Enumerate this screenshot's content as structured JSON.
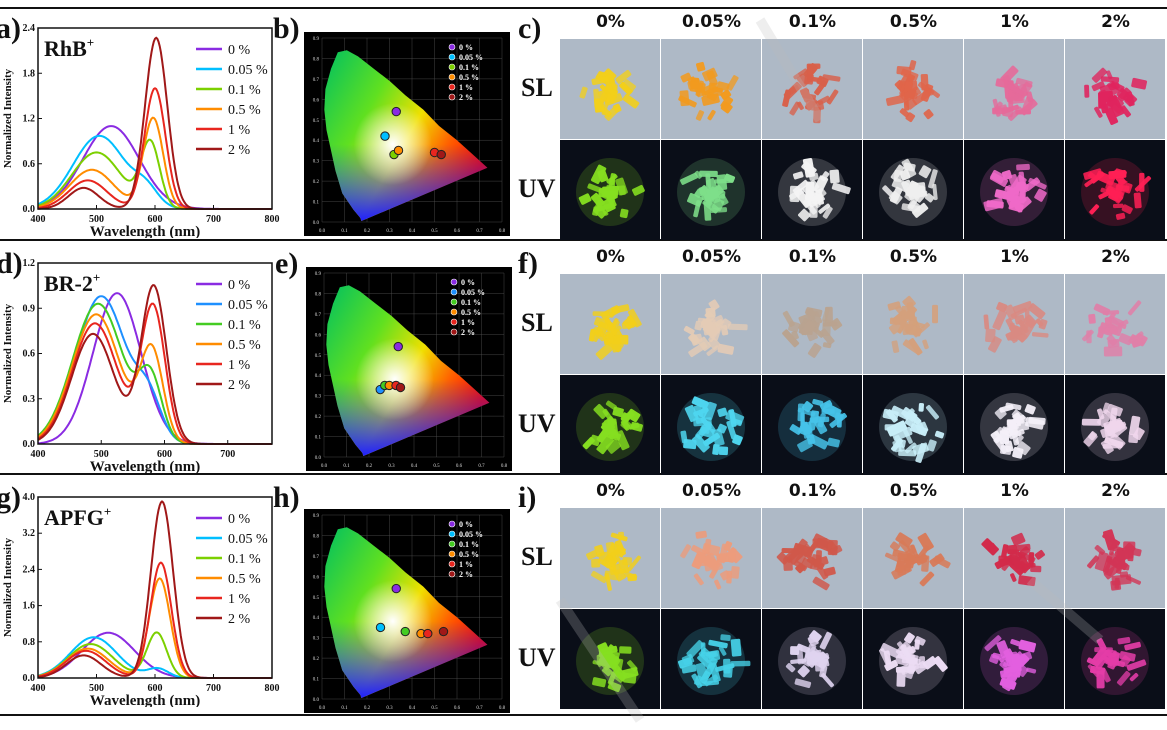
{
  "colors": {
    "s0": "#8a2be2",
    "s005": "#00bfff",
    "s01": "#7cd000",
    "s05": "#ff8c00",
    "s1": "#e8261f",
    "s2": "#a01818",
    "slBg": "#aeb9c6",
    "uvBg": "#0a0e18"
  },
  "legend_labels": [
    "0 %",
    "0.05 %",
    "0.1 %",
    "0.5 %",
    "1 %",
    "2 %"
  ],
  "cie_legend_labels": [
    "0 %",
    "0.05 %",
    "0.1 %",
    "0.5 %",
    "1 %",
    "2 %"
  ],
  "photo_headers": [
    "0%",
    "0.05%",
    "0.1%",
    "0.5%",
    "1%",
    "2%"
  ],
  "row_labels": {
    "sl": "SL",
    "uv": "UV"
  },
  "panels": [
    {
      "labels": {
        "spectrum": "a)",
        "cie": "b)",
        "photos": "c)"
      },
      "chart_data": {
        "type": "line",
        "title": "RhB+",
        "title_main": "RhB",
        "title_sup": "+",
        "xlabel": "Wavelength (nm)",
        "ylabel": "Normalized Intensity",
        "xlim": [
          400,
          800
        ],
        "ylim": [
          0,
          2.4
        ],
        "xticks": [
          "400",
          "500",
          "600",
          "700",
          "800"
        ],
        "yticks": [
          "0.0",
          "0.6",
          "1.2",
          "1.8",
          "2.4"
        ],
        "series": [
          {
            "name": "0 %",
            "color": "#8a2be2",
            "peaks": [
              {
                "c": 525,
                "h": 1.1,
                "w": 48
              }
            ]
          },
          {
            "name": "0.05 %",
            "color": "#00bfff",
            "peaks": [
              {
                "c": 505,
                "h": 0.97,
                "w": 45
              },
              {
                "c": 585,
                "h": 0.2,
                "w": 20
              }
            ]
          },
          {
            "name": "0.1 %",
            "color": "#7cd000",
            "peaks": [
              {
                "c": 500,
                "h": 0.75,
                "w": 42
              },
              {
                "c": 592,
                "h": 0.85,
                "w": 16
              }
            ]
          },
          {
            "name": "0.5 %",
            "color": "#ff8c00",
            "peaks": [
              {
                "c": 492,
                "h": 0.52,
                "w": 38
              },
              {
                "c": 597,
                "h": 1.2,
                "w": 17
              }
            ]
          },
          {
            "name": "1 %",
            "color": "#e8261f",
            "peaks": [
              {
                "c": 485,
                "h": 0.38,
                "w": 33
              },
              {
                "c": 600,
                "h": 1.6,
                "w": 18
              }
            ]
          },
          {
            "name": "2 %",
            "color": "#a01818",
            "peaks": [
              {
                "c": 478,
                "h": 0.28,
                "w": 26
              },
              {
                "c": 602,
                "h": 2.27,
                "w": 19
              }
            ]
          }
        ]
      },
      "cie_data": {
        "xticks": [
          "0.0",
          "0.1",
          "0.2",
          "0.3",
          "0.4",
          "0.5",
          "0.6",
          "0.7",
          "0.8"
        ],
        "yticks": [
          "0.0",
          "0.1",
          "0.2",
          "0.3",
          "0.4",
          "0.5",
          "0.6",
          "0.7",
          "0.8",
          "0.9"
        ],
        "points": [
          {
            "x": 0.33,
            "y": 0.54,
            "color": "#8a2be2"
          },
          {
            "x": 0.28,
            "y": 0.42,
            "color": "#00bfff"
          },
          {
            "x": 0.32,
            "y": 0.33,
            "color": "#7cd000"
          },
          {
            "x": 0.34,
            "y": 0.35,
            "color": "#ff8c00"
          },
          {
            "x": 0.5,
            "y": 0.34,
            "color": "#e8261f"
          },
          {
            "x": 0.53,
            "y": 0.33,
            "color": "#a01818"
          }
        ]
      },
      "photos": {
        "sl": [
          "#f2cf1a",
          "#f29a1e",
          "#d8604a",
          "#e0654a",
          "#e56a9a",
          "#e0245e"
        ],
        "uv": [
          "#86e020",
          "#7ee08a",
          "#f4f4f4",
          "#f0f0f0",
          "#f06ac8",
          "#ff1f55"
        ]
      }
    },
    {
      "labels": {
        "spectrum": "d)",
        "cie": "e)",
        "photos": "f)"
      },
      "chart_data": {
        "type": "line",
        "title": "BR-2+",
        "title_main": "BR-2",
        "title_sup": "+",
        "xlabel": "Wavelength (nm)",
        "ylabel": "Normalized Intensity",
        "xlim": [
          400,
          770
        ],
        "ylim": [
          0,
          1.2
        ],
        "xticks": [
          "400",
          "500",
          "600",
          "700"
        ],
        "yticks": [
          "0.0",
          "0.3",
          "0.6",
          "0.9",
          "1.2"
        ],
        "series": [
          {
            "name": "0 %",
            "color": "#8a2be2",
            "peaks": [
              {
                "c": 525,
                "h": 1.0,
                "w": 38
              }
            ]
          },
          {
            "name": "0.05 %",
            "color": "#1e90ff",
            "peaks": [
              {
                "c": 500,
                "h": 0.98,
                "w": 40
              },
              {
                "c": 575,
                "h": 0.25,
                "w": 20
              }
            ]
          },
          {
            "name": "0.1 %",
            "color": "#44cc22",
            "peaks": [
              {
                "c": 495,
                "h": 0.93,
                "w": 40
              },
              {
                "c": 578,
                "h": 0.4,
                "w": 18
              }
            ]
          },
          {
            "name": "0.5 %",
            "color": "#ff8c00",
            "peaks": [
              {
                "c": 492,
                "h": 0.86,
                "w": 38
              },
              {
                "c": 580,
                "h": 0.6,
                "w": 18
              }
            ]
          },
          {
            "name": "1 %",
            "color": "#e8261f",
            "peaks": [
              {
                "c": 490,
                "h": 0.8,
                "w": 36
              },
              {
                "c": 582,
                "h": 0.9,
                "w": 19
              }
            ]
          },
          {
            "name": "2 %",
            "color": "#a01818",
            "peaks": [
              {
                "c": 487,
                "h": 0.73,
                "w": 34
              },
              {
                "c": 583,
                "h": 1.04,
                "w": 20
              }
            ]
          }
        ]
      },
      "cie_data": {
        "xticks": [
          "0.0",
          "0.1",
          "0.2",
          "0.3",
          "0.4",
          "0.5",
          "0.6",
          "0.7",
          "0.8"
        ],
        "yticks": [
          "0.0",
          "0.1",
          "0.2",
          "0.3",
          "0.4",
          "0.5",
          "0.6",
          "0.7",
          "0.8",
          "0.9"
        ],
        "points": [
          {
            "x": 0.33,
            "y": 0.54,
            "color": "#8a2be2"
          },
          {
            "x": 0.25,
            "y": 0.33,
            "color": "#1e90ff"
          },
          {
            "x": 0.27,
            "y": 0.35,
            "color": "#44cc22"
          },
          {
            "x": 0.29,
            "y": 0.35,
            "color": "#ff8c00"
          },
          {
            "x": 0.32,
            "y": 0.35,
            "color": "#e8261f"
          },
          {
            "x": 0.34,
            "y": 0.34,
            "color": "#a01818"
          }
        ]
      },
      "photos": {
        "sl": [
          "#f2cf1a",
          "#e4cbb5",
          "#b9a390",
          "#d4a07c",
          "#d98a82",
          "#e07fa8"
        ],
        "uv": [
          "#86e020",
          "#4fd6f0",
          "#46c4ea",
          "#c8eef8",
          "#f4f0f8",
          "#f0d6ec"
        ]
      }
    },
    {
      "labels": {
        "spectrum": "g)",
        "cie": "h)",
        "photos": "i)"
      },
      "chart_data": {
        "type": "line",
        "title": "APFG+",
        "title_main": "APFG",
        "title_sup": "+",
        "xlabel": "Wavelength (nm)",
        "ylabel": "Normalized Intensity",
        "xlim": [
          400,
          800
        ],
        "ylim": [
          0,
          4.0
        ],
        "xticks": [
          "400",
          "500",
          "600",
          "700",
          "800"
        ],
        "yticks": [
          "0.0",
          "0.8",
          "1.6",
          "2.4",
          "3.2",
          "4.0"
        ],
        "series": [
          {
            "name": "0 %",
            "color": "#8a2be2",
            "peaks": [
              {
                "c": 520,
                "h": 1.0,
                "w": 45
              }
            ]
          },
          {
            "name": "0.05 %",
            "color": "#00bfff",
            "peaks": [
              {
                "c": 495,
                "h": 0.9,
                "w": 40
              },
              {
                "c": 605,
                "h": 0.2,
                "w": 18
              }
            ]
          },
          {
            "name": "0.1 %",
            "color": "#7cd000",
            "peaks": [
              {
                "c": 490,
                "h": 0.75,
                "w": 38
              },
              {
                "c": 603,
                "h": 1.0,
                "w": 17
              }
            ]
          },
          {
            "name": "0.5 %",
            "color": "#ff8c00",
            "peaks": [
              {
                "c": 485,
                "h": 0.65,
                "w": 36
              },
              {
                "c": 608,
                "h": 2.2,
                "w": 18
              }
            ]
          },
          {
            "name": "1 %",
            "color": "#e8261f",
            "peaks": [
              {
                "c": 482,
                "h": 0.6,
                "w": 34
              },
              {
                "c": 610,
                "h": 2.55,
                "w": 18
              }
            ]
          },
          {
            "name": "2 %",
            "color": "#a01818",
            "peaks": [
              {
                "c": 478,
                "h": 0.5,
                "w": 30
              },
              {
                "c": 612,
                "h": 3.9,
                "w": 19
              }
            ]
          }
        ]
      },
      "cie_data": {
        "xticks": [
          "0.0",
          "0.1",
          "0.2",
          "0.3",
          "0.4",
          "0.5",
          "0.6",
          "0.7",
          "0.8"
        ],
        "yticks": [
          "0.0",
          "0.1",
          "0.2",
          "0.3",
          "0.4",
          "0.5",
          "0.6",
          "0.7",
          "0.8",
          "0.9"
        ],
        "points": [
          {
            "x": 0.33,
            "y": 0.54,
            "color": "#8a2be2"
          },
          {
            "x": 0.26,
            "y": 0.35,
            "color": "#00bfff"
          },
          {
            "x": 0.37,
            "y": 0.33,
            "color": "#44cc22"
          },
          {
            "x": 0.44,
            "y": 0.32,
            "color": "#ff8c00"
          },
          {
            "x": 0.47,
            "y": 0.32,
            "color": "#e8261f"
          },
          {
            "x": 0.54,
            "y": 0.33,
            "color": "#a01818"
          }
        ]
      },
      "photos": {
        "sl": [
          "#f2cf1a",
          "#ec9c7c",
          "#d0584a",
          "#d87a58",
          "#d22a4a",
          "#d23556"
        ],
        "uv": [
          "#86e020",
          "#46d2e8",
          "#e0d4f0",
          "#ecdcf4",
          "#e260e0",
          "#e43ca8"
        ]
      }
    }
  ]
}
